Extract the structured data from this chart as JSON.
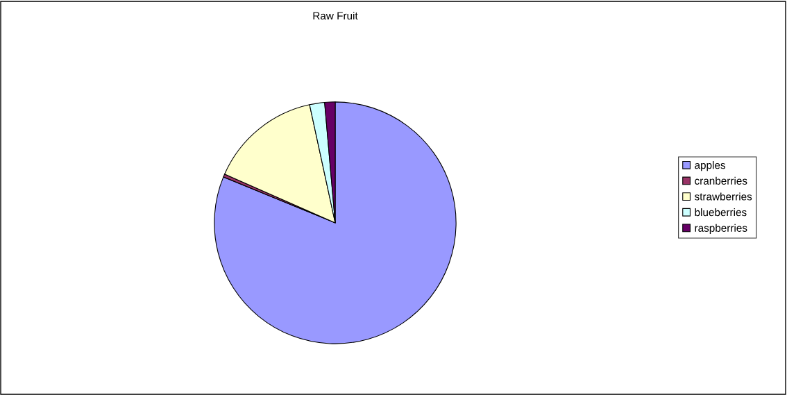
{
  "chart_data": {
    "type": "pie",
    "title": "Raw Fruit",
    "categories": [
      "apples",
      "cranberries",
      "strawberries",
      "blueberries",
      "raspberries"
    ],
    "values": [
      81.2,
      0.4,
      15.0,
      2.0,
      1.4
    ],
    "colors": [
      "#9999ff",
      "#993366",
      "#ffffcc",
      "#ccffff",
      "#660066"
    ],
    "legend": "right"
  }
}
